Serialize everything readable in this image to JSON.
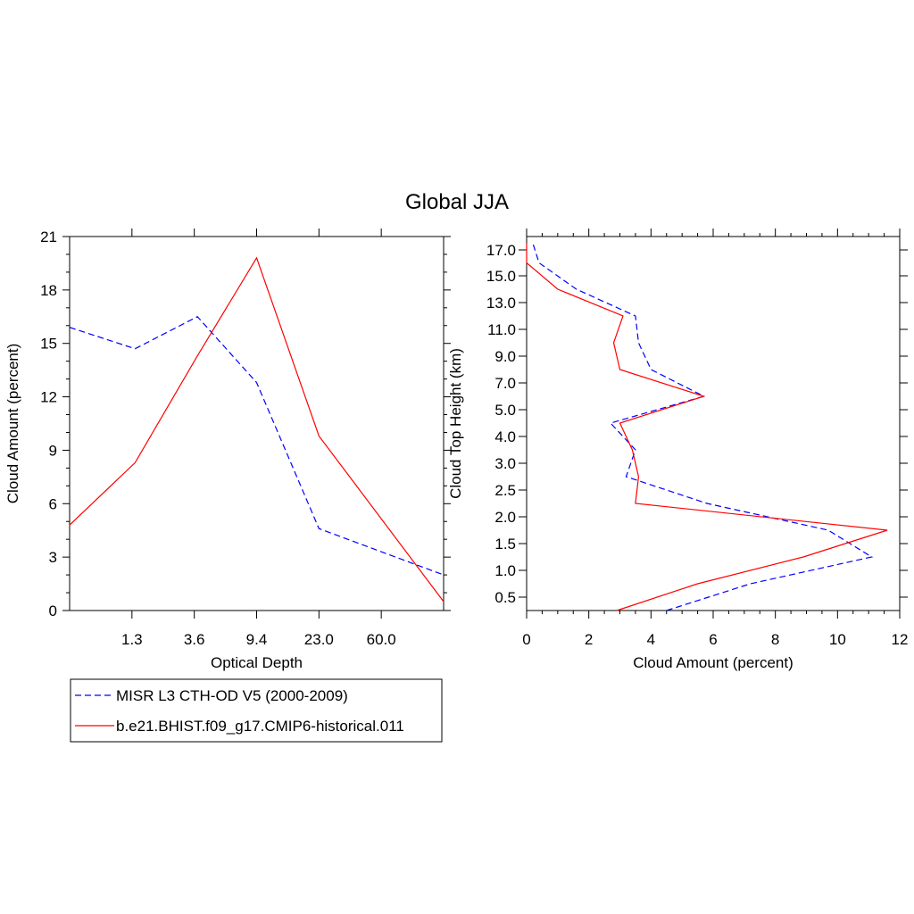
{
  "figure": {
    "title": "Global JJA"
  },
  "legend": {
    "entries": [
      {
        "label": "MISR L3 CTH-OD V5 (2000-2009)",
        "color": "#0000ff",
        "dashed": true
      },
      {
        "label": "b.e21.BHIST.f09_g17.CMIP6-historical.011",
        "color": "#ff0000",
        "dashed": false
      }
    ]
  },
  "chart_data": [
    {
      "type": "line",
      "xlabel": "Optical Depth",
      "ylabel": "Cloud Amount (percent)",
      "x_tick_labels": [
        "1.3",
        "3.6",
        "9.4",
        "23.0",
        "60.0"
      ],
      "x_category_positions": [
        0.15,
        1.05,
        2.0,
        3.0,
        4.0,
        5.0,
        5.85
      ],
      "ylim": [
        0,
        21
      ],
      "y_ticks": [
        0,
        3,
        6,
        9,
        12,
        15,
        18,
        21
      ],
      "series": [
        {
          "name": "MISR L3 CTH-OD V5 (2000-2009)",
          "color": "#0000ff",
          "dashed": true,
          "values": [
            15.9,
            14.7,
            16.5,
            12.8,
            4.6,
            2.0
          ]
        },
        {
          "name": "b.e21.BHIST.f09_g17.CMIP6-historical.011",
          "color": "#ff0000",
          "dashed": false,
          "values": [
            4.8,
            8.3,
            14.3,
            19.8,
            9.8,
            0.5
          ]
        }
      ]
    },
    {
      "type": "line",
      "xlabel": "Cloud Amount (percent)",
      "ylabel": "Cloud Top Height (km)",
      "xlim": [
        0,
        12
      ],
      "x_ticks": [
        0,
        2,
        4,
        6,
        8,
        10,
        12
      ],
      "y_tick_labels": [
        "0.5",
        "1.0",
        "1.5",
        "2.0",
        "2.5",
        "3.0",
        "4.0",
        "5.0",
        "7.0",
        "9.0",
        "11.0",
        "13.0",
        "15.0",
        "17.0"
      ],
      "series": [
        {
          "name": "MISR L3 CTH-OD V5 (2000-2009)",
          "color": "#0000ff",
          "dashed": true,
          "y_levels": [
            0.25,
            0.75,
            1.25,
            1.75,
            2.25,
            2.75,
            3.5,
            4.5,
            6.0,
            8.0,
            10.0,
            12.0,
            14.0,
            16.0,
            17.5
          ],
          "values": [
            4.5,
            7.2,
            11.1,
            9.7,
            5.8,
            3.2,
            3.5,
            2.7,
            5.7,
            4.0,
            3.6,
            3.5,
            1.6,
            0.4,
            0.2
          ]
        },
        {
          "name": "b.e21.BHIST.f09_g17.CMIP6-historical.011",
          "color": "#ff0000",
          "dashed": false,
          "y_levels": [
            0.25,
            0.75,
            1.25,
            1.75,
            2.25,
            2.75,
            3.5,
            4.5,
            6.0,
            8.0,
            10.0,
            12.0,
            14.0,
            16.0,
            17.5
          ],
          "values": [
            2.9,
            5.5,
            8.9,
            11.6,
            3.5,
            3.6,
            3.4,
            3.0,
            5.7,
            3.0,
            2.8,
            3.1,
            1.0,
            0.0,
            0.0
          ]
        }
      ]
    }
  ]
}
